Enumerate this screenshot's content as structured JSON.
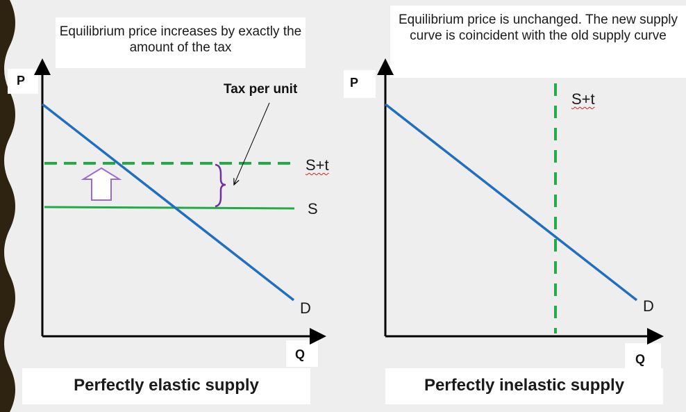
{
  "left_panel": {
    "caption": "Equilibrium price increases by exactly the amount of the tax",
    "y_axis_label": "P",
    "x_axis_label": "Q",
    "tax_label": "Tax per unit",
    "curve_labels": {
      "supply_taxed": "S+t",
      "supply": "S",
      "demand": "D"
    },
    "title": "Perfectly elastic supply"
  },
  "right_panel": {
    "caption": "Equilibrium price is unchanged. The new supply curve is coincident with the old supply curve",
    "y_axis_label": "P",
    "x_axis_label": "Q",
    "curve_labels": {
      "supply_taxed": "S+t",
      "demand": "D"
    },
    "title": "Perfectly inelastic supply"
  },
  "colors": {
    "demand": "#1f6fc0",
    "supply": "#22aa44",
    "supply_taxed": "#22aa44",
    "brace": "#7030a0",
    "arrow_outline": "#7030a0",
    "background": "#eeeeee",
    "border_wave": "#2e2210"
  }
}
